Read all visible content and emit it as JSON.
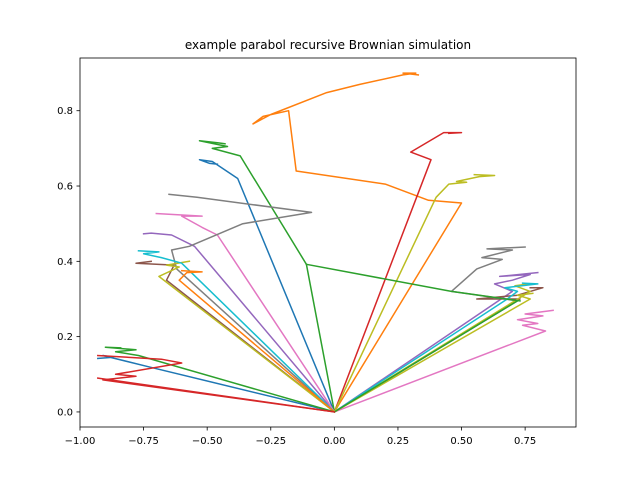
{
  "chart_data": {
    "type": "line",
    "title": "example parabol recursive Brownian simulation",
    "xlabel": "",
    "ylabel": "",
    "xlim": [
      -1.0,
      0.95
    ],
    "ylim": [
      -0.04,
      0.94
    ],
    "xticks": [
      -1.0,
      -0.75,
      -0.5,
      -0.25,
      0.0,
      0.25,
      0.5,
      0.75
    ],
    "xtick_labels": [
      "−1.00",
      "−0.75",
      "−0.50",
      "−0.25",
      "0.00",
      "0.25",
      "0.50",
      "0.75"
    ],
    "yticks": [
      0.0,
      0.2,
      0.4,
      0.6,
      0.8
    ],
    "ytick_labels": [
      "0.0",
      "0.2",
      "0.4",
      "0.6",
      "0.8"
    ],
    "grid": false,
    "legend": false,
    "series": [
      {
        "color": "#1f77b4",
        "points": [
          [
            0,
            0
          ],
          [
            -0.38,
            0.62
          ],
          [
            -0.48,
            0.665
          ],
          [
            -0.53,
            0.67
          ],
          [
            -0.49,
            0.66
          ],
          [
            -0.46,
            0.658
          ]
        ]
      },
      {
        "color": "#ff7f0e",
        "points": [
          [
            0,
            0
          ],
          [
            0.5,
            0.555
          ],
          [
            0.37,
            0.562
          ],
          [
            0.2,
            0.605
          ],
          [
            -0.15,
            0.64
          ],
          [
            -0.18,
            0.8
          ],
          [
            -0.28,
            0.785
          ],
          [
            -0.32,
            0.765
          ],
          [
            -0.25,
            0.79
          ],
          [
            -0.03,
            0.848
          ],
          [
            0.1,
            0.87
          ],
          [
            0.27,
            0.895
          ],
          [
            0.32,
            0.9
          ],
          [
            0.27,
            0.9
          ],
          [
            0.33,
            0.895
          ]
        ]
      },
      {
        "color": "#2ca02c",
        "points": [
          [
            0,
            0
          ],
          [
            -0.11,
            0.392
          ],
          [
            -0.37,
            0.68
          ],
          [
            -0.48,
            0.7
          ],
          [
            -0.42,
            0.705
          ],
          [
            -0.53,
            0.72
          ],
          [
            -0.46,
            0.715
          ],
          [
            -0.43,
            0.712
          ]
        ]
      },
      {
        "color": "#d62728",
        "points": [
          [
            0,
            0
          ],
          [
            0.38,
            0.67
          ],
          [
            0.3,
            0.69
          ],
          [
            0.4,
            0.73
          ],
          [
            0.43,
            0.742
          ],
          [
            0.5,
            0.742
          ],
          [
            0.45,
            0.74
          ]
        ]
      },
      {
        "color": "#9467bd",
        "points": [
          [
            0,
            0
          ],
          [
            -0.55,
            0.44
          ],
          [
            -0.64,
            0.47
          ],
          [
            -0.72,
            0.475
          ],
          [
            -0.75,
            0.473
          ]
        ]
      },
      {
        "color": "#8c564b",
        "points": [
          [
            0,
            0
          ],
          [
            -0.66,
            0.35
          ],
          [
            -0.63,
            0.39
          ],
          [
            -0.78,
            0.395
          ],
          [
            -0.72,
            0.4
          ]
        ]
      },
      {
        "color": "#e377c2",
        "points": [
          [
            0,
            0
          ],
          [
            -0.46,
            0.47
          ],
          [
            -0.52,
            0.49
          ],
          [
            -0.6,
            0.52
          ],
          [
            -0.52,
            0.52
          ],
          [
            -0.7,
            0.527
          ]
        ]
      },
      {
        "color": "#7f7f7f",
        "points": [
          [
            0,
            0
          ],
          [
            -0.62,
            0.38
          ],
          [
            -0.64,
            0.43
          ],
          [
            -0.57,
            0.44
          ],
          [
            -0.36,
            0.5
          ],
          [
            -0.09,
            0.53
          ],
          [
            -0.54,
            0.57
          ],
          [
            -0.65,
            0.578
          ]
        ]
      },
      {
        "color": "#bcbd22",
        "points": [
          [
            0,
            0
          ],
          [
            -0.69,
            0.36
          ],
          [
            -0.61,
            0.385
          ],
          [
            -0.66,
            0.39
          ],
          [
            -0.57,
            0.4
          ]
        ]
      },
      {
        "color": "#17becf",
        "points": [
          [
            0,
            0
          ],
          [
            -0.6,
            0.395
          ],
          [
            -0.68,
            0.41
          ],
          [
            -0.75,
            0.42
          ],
          [
            -0.69,
            0.425
          ],
          [
            -0.77,
            0.428
          ]
        ]
      },
      {
        "color": "#1f77b4",
        "points": [
          [
            0,
            0
          ],
          [
            -0.73,
            0.12
          ],
          [
            -0.91,
            0.15
          ],
          [
            -0.87,
            0.145
          ],
          [
            -0.93,
            0.142
          ]
        ]
      },
      {
        "color": "#ff7f0e",
        "points": [
          [
            0,
            0
          ],
          [
            -0.61,
            0.35
          ],
          [
            -0.58,
            0.37
          ],
          [
            -0.52,
            0.372
          ],
          [
            -0.6,
            0.375
          ]
        ]
      },
      {
        "color": "#2ca02c",
        "points": [
          [
            0,
            0
          ],
          [
            -0.77,
            0.15
          ],
          [
            -0.86,
            0.16
          ],
          [
            -0.78,
            0.165
          ],
          [
            -0.9,
            0.172
          ],
          [
            -0.84,
            0.17
          ]
        ]
      },
      {
        "color": "#d62728",
        "points": [
          [
            0,
            0
          ],
          [
            -0.91,
            0.085
          ],
          [
            -0.78,
            0.095
          ],
          [
            -0.86,
            0.1
          ],
          [
            -0.6,
            0.13
          ],
          [
            -0.68,
            0.14
          ],
          [
            -0.93,
            0.15
          ]
        ]
      },
      {
        "color": "#9467bd",
        "points": [
          [
            0,
            0
          ],
          [
            0.7,
            0.32
          ],
          [
            0.63,
            0.34
          ],
          [
            0.7,
            0.35
          ],
          [
            0.77,
            0.365
          ],
          [
            0.65,
            0.36
          ],
          [
            0.8,
            0.37
          ]
        ]
      },
      {
        "color": "#8c564b",
        "points": [
          [
            0,
            0
          ],
          [
            0.73,
            0.3
          ],
          [
            0.56,
            0.3
          ],
          [
            0.72,
            0.31
          ],
          [
            0.82,
            0.33
          ],
          [
            0.77,
            0.33
          ]
        ]
      },
      {
        "color": "#e377c2",
        "points": [
          [
            0,
            0
          ],
          [
            0.83,
            0.215
          ],
          [
            0.74,
            0.23
          ],
          [
            0.8,
            0.235
          ],
          [
            0.72,
            0.245
          ],
          [
            0.82,
            0.255
          ],
          [
            0.75,
            0.26
          ],
          [
            0.86,
            0.27
          ]
        ]
      },
      {
        "color": "#7f7f7f",
        "points": [
          [
            0,
            0
          ],
          [
            0.72,
            0.295
          ],
          [
            0.46,
            0.32
          ],
          [
            0.56,
            0.38
          ],
          [
            0.66,
            0.405
          ],
          [
            0.58,
            0.41
          ],
          [
            0.7,
            0.43
          ],
          [
            0.6,
            0.433
          ],
          [
            0.75,
            0.438
          ]
        ]
      },
      {
        "color": "#bcbd22",
        "points": [
          [
            0,
            0
          ],
          [
            0.77,
            0.32
          ],
          [
            0.71,
            0.335
          ],
          [
            0.74,
            0.338
          ],
          [
            0.77,
            0.34
          ]
        ]
      },
      {
        "color": "#17becf",
        "points": [
          [
            0,
            0
          ],
          [
            0.68,
            0.3
          ],
          [
            0.72,
            0.32
          ],
          [
            0.67,
            0.33
          ],
          [
            0.8,
            0.34
          ],
          [
            0.74,
            0.342
          ]
        ]
      },
      {
        "color": "#bcbd22",
        "points": [
          [
            0,
            0
          ],
          [
            0.77,
            0.3
          ],
          [
            0.72,
            0.31
          ],
          [
            0.78,
            0.315
          ]
        ]
      },
      {
        "color": "#bcbd22",
        "points": [
          [
            0,
            0
          ],
          [
            0.4,
            0.57
          ],
          [
            0.45,
            0.605
          ],
          [
            0.52,
            0.61
          ],
          [
            0.48,
            0.612
          ],
          [
            0.57,
            0.625
          ],
          [
            0.63,
            0.628
          ],
          [
            0.55,
            0.63
          ]
        ]
      },
      {
        "color": "#2ca02c",
        "points": [
          [
            -0.11,
            0.392
          ],
          [
            0.46,
            0.32
          ],
          [
            0.73,
            0.295
          ]
        ]
      },
      {
        "color": "#2ca02c",
        "points": [
          [
            0,
            0
          ],
          [
            0.72,
            0.295
          ]
        ]
      },
      {
        "color": "#d62728",
        "points": [
          [
            0,
            0
          ],
          [
            -0.93,
            0.09
          ]
        ]
      }
    ]
  }
}
